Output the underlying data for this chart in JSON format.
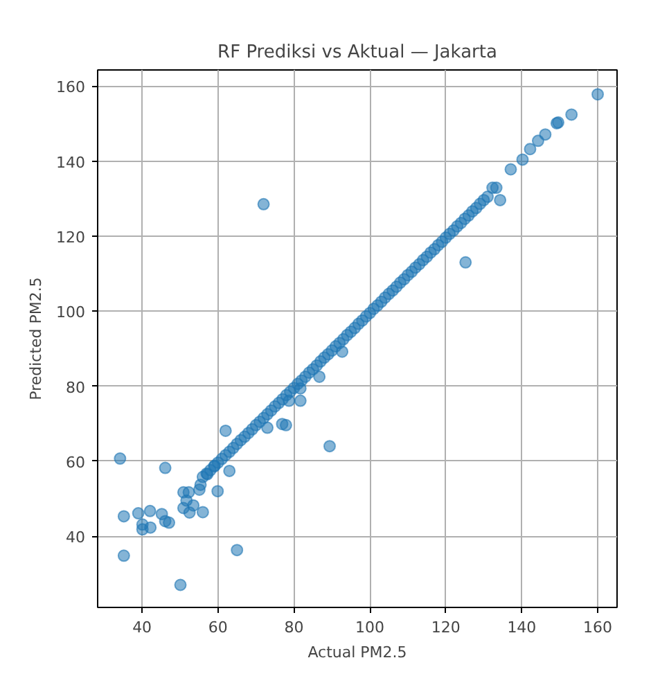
{
  "chart_data": {
    "type": "scatter",
    "title": "RF Prediksi vs Aktual — Jakarta",
    "xlabel": "Actual PM2.5",
    "ylabel": "Predicted PM2.5",
    "xlim": [
      28.3,
      165.1
    ],
    "ylim": [
      21.0,
      164.3
    ],
    "xticks": [
      40,
      60,
      80,
      100,
      120,
      140,
      160
    ],
    "yticks": [
      40,
      60,
      80,
      100,
      120,
      140,
      160
    ],
    "grid": true,
    "marker": "circle",
    "series": [
      {
        "color": "#1f77b4",
        "x": [
          34.2,
          35.2,
          35.2,
          39.0,
          40.1,
          40.1,
          42.1,
          42.2,
          45.2,
          46.1,
          47.1,
          46.1,
          50.1,
          50.9,
          52.3,
          51.7,
          50.9,
          53.5,
          52.5,
          55.4,
          55.1,
          56.0,
          59.9,
          57.2,
          59.1,
          63.0,
          65.0,
          62.0,
          72.0,
          73.0,
          76.9,
          77.9,
          78.7,
          81.7,
          81.7,
          86.7,
          89.4,
          92.7,
          125.2,
          134.3,
          133.3,
          132.3,
          137.1,
          140.2,
          142.2,
          144.3,
          146.2,
          149.2,
          149.6,
          153.1,
          160.0,
          56,
          57,
          58,
          59,
          60,
          61,
          62,
          63,
          64,
          65,
          66,
          67,
          68,
          69,
          70,
          71,
          72,
          73,
          74,
          75,
          76,
          77,
          78,
          79,
          80,
          81,
          82,
          83,
          84,
          85,
          86,
          87,
          88,
          89,
          90,
          91,
          92,
          93,
          94,
          95,
          96,
          97,
          98,
          99,
          100,
          101,
          102,
          103,
          104,
          105,
          106,
          107,
          108,
          109,
          110,
          111,
          112,
          113,
          114,
          115,
          116,
          117,
          118,
          119,
          120,
          121,
          122,
          123,
          124,
          125,
          126,
          127,
          128,
          129,
          130,
          131
        ],
        "values": [
          60.7,
          45.3,
          34.8,
          46.1,
          43.1,
          41.8,
          46.7,
          42.3,
          45.9,
          44.0,
          43.6,
          58.2,
          27.0,
          51.7,
          51.7,
          49.5,
          47.5,
          48.2,
          46.3,
          53.7,
          52.4,
          46.4,
          52.0,
          56.5,
          58.8,
          57.4,
          36.3,
          68.1,
          128.5,
          68.9,
          69.9,
          69.6,
          76.1,
          76.1,
          79.4,
          82.5,
          64.0,
          89.2,
          113.0,
          129.6,
          132.9,
          132.9,
          137.8,
          140.4,
          143.2,
          145.4,
          147.1,
          150.1,
          150.3,
          152.4,
          157.8,
          55.8,
          56.7,
          57.6,
          58.6,
          59.6,
          60.6,
          61.6,
          62.5,
          63.5,
          64.6,
          65.6,
          66.5,
          67.5,
          68.5,
          69.6,
          70.5,
          71.5,
          72.5,
          73.5,
          74.6,
          75.5,
          76.5,
          77.6,
          78.5,
          79.5,
          80.6,
          81.5,
          82.5,
          83.6,
          84.5,
          85.5,
          86.6,
          87.6,
          88.5,
          89.5,
          90.6,
          91.5,
          92.5,
          93.6,
          94.5,
          95.5,
          96.6,
          97.5,
          98.6,
          99.5,
          100.6,
          101.5,
          102.5,
          103.6,
          104.6,
          105.5,
          106.5,
          107.6,
          108.5,
          109.6,
          110.5,
          111.6,
          112.5,
          113.6,
          114.5,
          115.6,
          116.5,
          117.6,
          118.5,
          119.6,
          120.6,
          121.5,
          122.6,
          123.5,
          124.6,
          125.5,
          126.6,
          127.5,
          128.6,
          129.6,
          130.5
        ]
      }
    ]
  }
}
